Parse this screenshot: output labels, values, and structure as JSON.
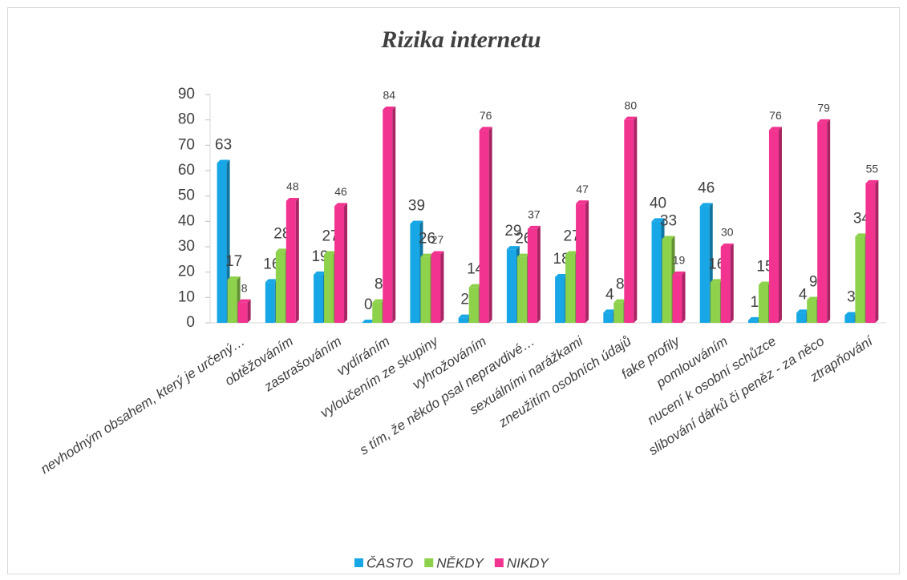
{
  "chart_data": {
    "type": "bar",
    "title": "Rizika internetu",
    "categories": [
      "nevhodným obsahem, který je určený…",
      "obtěžováním",
      "zastrašováním",
      "vydíráním",
      "vyloučením ze skupiny",
      "vyhrožováním",
      "s tím, že někdo psal nepravdivé…",
      "sexuálními narážkami",
      "zneužitím osobních údajů",
      "fake profily",
      "pomlouváním",
      "nucení k osobní schůzce",
      "slibování dárků či peněz - za něco",
      "ztrapňování"
    ],
    "series": [
      {
        "name": "ČASTO",
        "color": "#17a7e6",
        "values": [
          63,
          16,
          19,
          0,
          39,
          2,
          29,
          18,
          4,
          40,
          46,
          1,
          4,
          3
        ]
      },
      {
        "name": "NĚKDY",
        "color": "#8ed14b",
        "values": [
          17,
          28,
          27,
          8,
          26,
          14,
          26,
          27,
          8,
          33,
          16,
          15,
          9,
          34
        ]
      },
      {
        "name": "NIKDY",
        "color": "#f2338f",
        "values": [
          8,
          48,
          46,
          84,
          27,
          76,
          37,
          47,
          80,
          19,
          30,
          76,
          79,
          55
        ]
      }
    ],
    "ylim": [
      0,
      90
    ],
    "yticks": [
      0,
      10,
      20,
      30,
      40,
      50,
      60,
      70,
      80,
      90
    ],
    "grid": false,
    "legend": "bottom"
  }
}
